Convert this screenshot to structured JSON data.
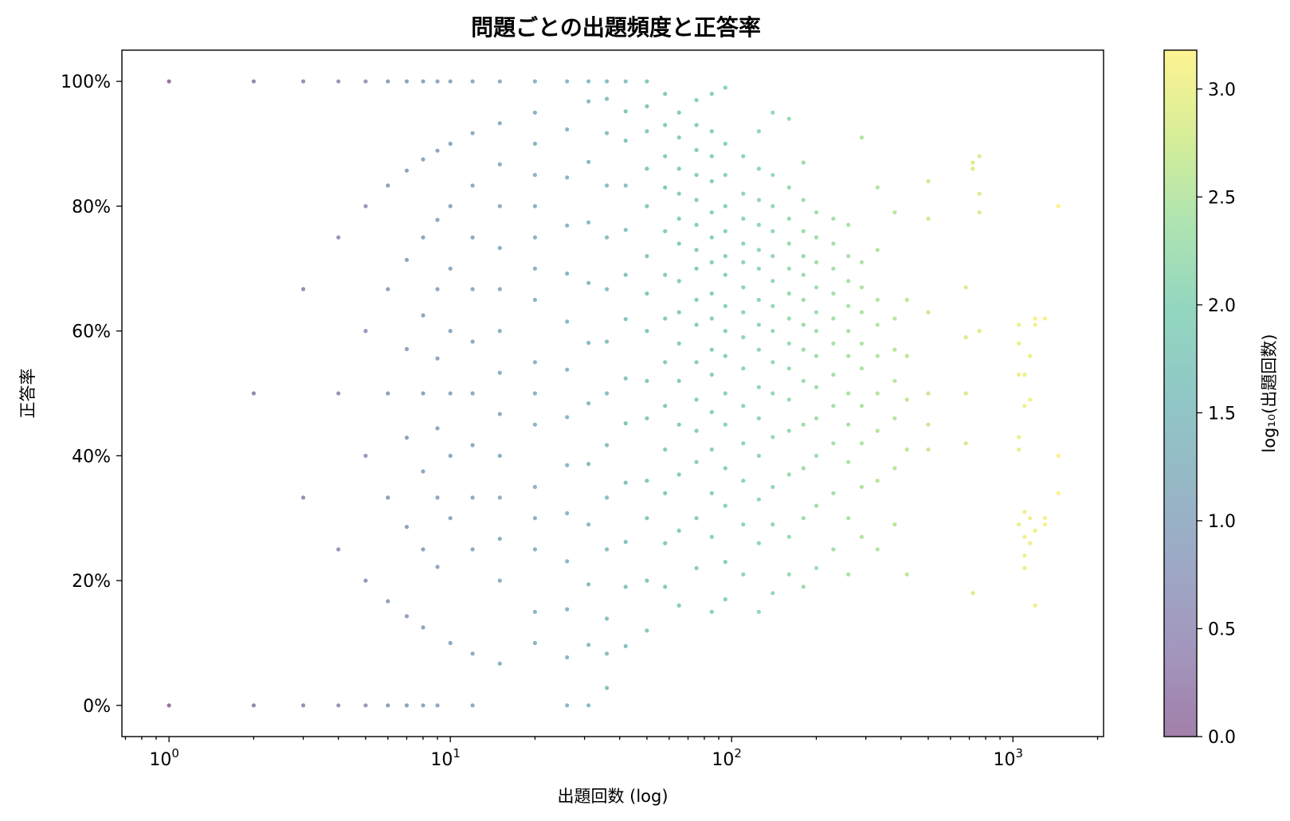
{
  "chart_data": {
    "type": "scatter",
    "title": "問題ごとの出題頻度と正答率",
    "xlabel": "出題回数 (log)",
    "ylabel": "正答率",
    "colorbar_label": "log₁₀(出題回数)",
    "x_scale": "log",
    "xlim": [
      0.68,
      2100
    ],
    "ylim": [
      -0.05,
      1.05
    ],
    "colorbar_range": [
      0.0,
      3.18
    ],
    "colormap": "viridis",
    "marker_alpha": 0.55,
    "x_major_ticks": [
      {
        "value": 1,
        "base": "10",
        "exp": "0"
      },
      {
        "value": 10,
        "base": "10",
        "exp": "1"
      },
      {
        "value": 100,
        "base": "10",
        "exp": "2"
      },
      {
        "value": 1000,
        "base": "10",
        "exp": "3"
      }
    ],
    "y_ticks": [
      {
        "value": 0.0,
        "label": "0%"
      },
      {
        "value": 0.2,
        "label": "20%"
      },
      {
        "value": 0.4,
        "label": "40%"
      },
      {
        "value": 0.6,
        "label": "60%"
      },
      {
        "value": 0.8,
        "label": "80%"
      },
      {
        "value": 1.0,
        "label": "100%"
      }
    ],
    "colorbar_ticks": [
      {
        "value": 0.0,
        "label": "0.0"
      },
      {
        "value": 0.5,
        "label": "0.5"
      },
      {
        "value": 1.0,
        "label": "1.0"
      },
      {
        "value": 1.5,
        "label": "1.5"
      },
      {
        "value": 2.0,
        "label": "2.0"
      },
      {
        "value": 2.5,
        "label": "2.5"
      },
      {
        "value": 3.0,
        "label": "3.0"
      }
    ],
    "points": [
      [
        1,
        0
      ],
      [
        1,
        1
      ],
      [
        2,
        0
      ],
      [
        2,
        0.5
      ],
      [
        2,
        1
      ],
      [
        3,
        0
      ],
      [
        3,
        0.333
      ],
      [
        3,
        0.667
      ],
      [
        3,
        1
      ],
      [
        4,
        0
      ],
      [
        4,
        0.25
      ],
      [
        4,
        0.5
      ],
      [
        4,
        0.75
      ],
      [
        4,
        1
      ],
      [
        5,
        0
      ],
      [
        5,
        0.2
      ],
      [
        5,
        0.4
      ],
      [
        5,
        0.6
      ],
      [
        5,
        0.8
      ],
      [
        5,
        1
      ],
      [
        6,
        0
      ],
      [
        6,
        0.167
      ],
      [
        6,
        0.333
      ],
      [
        6,
        0.5
      ],
      [
        6,
        0.667
      ],
      [
        6,
        0.833
      ],
      [
        6,
        1
      ],
      [
        7,
        0
      ],
      [
        7,
        0.143
      ],
      [
        7,
        0.286
      ],
      [
        7,
        0.429
      ],
      [
        7,
        0.571
      ],
      [
        7,
        0.714
      ],
      [
        7,
        0.857
      ],
      [
        7,
        1
      ],
      [
        8,
        0
      ],
      [
        8,
        0.125
      ],
      [
        8,
        0.25
      ],
      [
        8,
        0.375
      ],
      [
        8,
        0.5
      ],
      [
        8,
        0.625
      ],
      [
        8,
        0.75
      ],
      [
        8,
        0.875
      ],
      [
        8,
        1
      ],
      [
        9,
        0
      ],
      [
        9,
        0.222
      ],
      [
        9,
        0.333
      ],
      [
        9,
        0.444
      ],
      [
        9,
        0.556
      ],
      [
        9,
        0.667
      ],
      [
        9,
        0.778
      ],
      [
        9,
        0.889
      ],
      [
        9,
        1
      ],
      [
        10,
        0.1
      ],
      [
        10,
        0.3
      ],
      [
        10,
        0.4
      ],
      [
        10,
        0.5
      ],
      [
        10,
        0.6
      ],
      [
        10,
        0.7
      ],
      [
        10,
        0.8
      ],
      [
        10,
        0.9
      ],
      [
        10,
        1
      ],
      [
        12,
        0
      ],
      [
        12,
        0.083
      ],
      [
        12,
        0.25
      ],
      [
        12,
        0.333
      ],
      [
        12,
        0.417
      ],
      [
        12,
        0.5
      ],
      [
        12,
        0.583
      ],
      [
        12,
        0.667
      ],
      [
        12,
        0.75
      ],
      [
        12,
        0.833
      ],
      [
        12,
        0.917
      ],
      [
        12,
        1
      ],
      [
        15,
        0.067
      ],
      [
        15,
        0.2
      ],
      [
        15,
        0.267
      ],
      [
        15,
        0.333
      ],
      [
        15,
        0.4
      ],
      [
        15,
        0.467
      ],
      [
        15,
        0.533
      ],
      [
        15,
        0.6
      ],
      [
        15,
        0.667
      ],
      [
        15,
        0.733
      ],
      [
        15,
        0.8
      ],
      [
        15,
        0.867
      ],
      [
        15,
        0.933
      ],
      [
        15,
        1
      ],
      [
        20,
        0.1
      ],
      [
        20,
        0.15
      ],
      [
        20,
        0.25
      ],
      [
        20,
        0.3
      ],
      [
        20,
        0.35
      ],
      [
        20,
        0.45
      ],
      [
        20,
        0.5
      ],
      [
        20,
        0.55
      ],
      [
        20,
        0.65
      ],
      [
        20,
        0.7
      ],
      [
        20,
        0.75
      ],
      [
        20,
        0.8
      ],
      [
        20,
        0.85
      ],
      [
        20,
        0.9
      ],
      [
        20,
        0.95
      ],
      [
        20,
        1
      ],
      [
        26,
        0
      ],
      [
        26,
        0.077
      ],
      [
        26,
        0.154
      ],
      [
        26,
        0.231
      ],
      [
        26,
        0.308
      ],
      [
        26,
        0.385
      ],
      [
        26,
        0.462
      ],
      [
        26,
        0.538
      ],
      [
        26,
        0.615
      ],
      [
        26,
        0.692
      ],
      [
        26,
        0.769
      ],
      [
        26,
        0.846
      ],
      [
        26,
        0.923
      ],
      [
        26,
        1
      ],
      [
        31,
        0
      ],
      [
        31,
        0.097
      ],
      [
        31,
        0.194
      ],
      [
        31,
        0.29
      ],
      [
        31,
        0.387
      ],
      [
        31,
        0.484
      ],
      [
        31,
        0.581
      ],
      [
        31,
        0.677
      ],
      [
        31,
        0.774
      ],
      [
        31,
        0.871
      ],
      [
        31,
        0.968
      ],
      [
        31,
        1
      ],
      [
        36,
        0.028
      ],
      [
        36,
        0.083
      ],
      [
        36,
        0.139
      ],
      [
        36,
        0.25
      ],
      [
        36,
        0.333
      ],
      [
        36,
        0.417
      ],
      [
        36,
        0.5
      ],
      [
        36,
        0.583
      ],
      [
        36,
        0.667
      ],
      [
        36,
        0.75
      ],
      [
        36,
        0.833
      ],
      [
        36,
        0.917
      ],
      [
        36,
        0.972
      ],
      [
        36,
        1
      ],
      [
        42,
        0.095
      ],
      [
        42,
        0.19
      ],
      [
        42,
        0.262
      ],
      [
        42,
        0.357
      ],
      [
        42,
        0.452
      ],
      [
        42,
        0.524
      ],
      [
        42,
        0.619
      ],
      [
        42,
        0.69
      ],
      [
        42,
        0.762
      ],
      [
        42,
        0.833
      ],
      [
        42,
        0.905
      ],
      [
        42,
        0.952
      ],
      [
        42,
        1
      ],
      [
        50,
        0.12
      ],
      [
        50,
        0.2
      ],
      [
        50,
        0.3
      ],
      [
        50,
        0.36
      ],
      [
        50,
        0.46
      ],
      [
        50,
        0.52
      ],
      [
        50,
        0.6
      ],
      [
        50,
        0.66
      ],
      [
        50,
        0.72
      ],
      [
        50,
        0.8
      ],
      [
        50,
        0.86
      ],
      [
        50,
        0.92
      ],
      [
        50,
        0.96
      ],
      [
        50,
        1
      ],
      [
        58,
        0.19
      ],
      [
        58,
        0.26
      ],
      [
        58,
        0.34
      ],
      [
        58,
        0.41
      ],
      [
        58,
        0.48
      ],
      [
        58,
        0.55
      ],
      [
        58,
        0.62
      ],
      [
        58,
        0.69
      ],
      [
        58,
        0.76
      ],
      [
        58,
        0.83
      ],
      [
        58,
        0.88
      ],
      [
        58,
        0.93
      ],
      [
        58,
        0.98
      ],
      [
        65,
        0.16
      ],
      [
        65,
        0.28
      ],
      [
        65,
        0.37
      ],
      [
        65,
        0.45
      ],
      [
        65,
        0.52
      ],
      [
        65,
        0.58
      ],
      [
        65,
        0.63
      ],
      [
        65,
        0.68
      ],
      [
        65,
        0.74
      ],
      [
        65,
        0.78
      ],
      [
        65,
        0.82
      ],
      [
        65,
        0.86
      ],
      [
        65,
        0.91
      ],
      [
        65,
        0.95
      ],
      [
        75,
        0.22
      ],
      [
        75,
        0.3
      ],
      [
        75,
        0.39
      ],
      [
        75,
        0.44
      ],
      [
        75,
        0.49
      ],
      [
        75,
        0.55
      ],
      [
        75,
        0.61
      ],
      [
        75,
        0.65
      ],
      [
        75,
        0.7
      ],
      [
        75,
        0.73
      ],
      [
        75,
        0.77
      ],
      [
        75,
        0.81
      ],
      [
        75,
        0.85
      ],
      [
        75,
        0.89
      ],
      [
        75,
        0.93
      ],
      [
        75,
        0.97
      ],
      [
        85,
        0.15
      ],
      [
        85,
        0.27
      ],
      [
        85,
        0.34
      ],
      [
        85,
        0.41
      ],
      [
        85,
        0.47
      ],
      [
        85,
        0.53
      ],
      [
        85,
        0.57
      ],
      [
        85,
        0.62
      ],
      [
        85,
        0.66
      ],
      [
        85,
        0.71
      ],
      [
        85,
        0.75
      ],
      [
        85,
        0.79
      ],
      [
        85,
        0.84
      ],
      [
        85,
        0.88
      ],
      [
        85,
        0.92
      ],
      [
        85,
        0.98
      ],
      [
        95,
        0.17
      ],
      [
        95,
        0.23
      ],
      [
        95,
        0.32
      ],
      [
        95,
        0.38
      ],
      [
        95,
        0.45
      ],
      [
        95,
        0.5
      ],
      [
        95,
        0.56
      ],
      [
        95,
        0.6
      ],
      [
        95,
        0.64
      ],
      [
        95,
        0.69
      ],
      [
        95,
        0.72
      ],
      [
        95,
        0.76
      ],
      [
        95,
        0.8
      ],
      [
        95,
        0.85
      ],
      [
        95,
        0.9
      ],
      [
        95,
        0.99
      ],
      [
        110,
        0.21
      ],
      [
        110,
        0.29
      ],
      [
        110,
        0.36
      ],
      [
        110,
        0.42
      ],
      [
        110,
        0.48
      ],
      [
        110,
        0.54
      ],
      [
        110,
        0.59
      ],
      [
        110,
        0.63
      ],
      [
        110,
        0.67
      ],
      [
        110,
        0.71
      ],
      [
        110,
        0.74
      ],
      [
        110,
        0.78
      ],
      [
        110,
        0.82
      ],
      [
        110,
        0.88
      ],
      [
        125,
        0.15
      ],
      [
        125,
        0.26
      ],
      [
        125,
        0.33
      ],
      [
        125,
        0.4
      ],
      [
        125,
        0.46
      ],
      [
        125,
        0.51
      ],
      [
        125,
        0.57
      ],
      [
        125,
        0.61
      ],
      [
        125,
        0.65
      ],
      [
        125,
        0.7
      ],
      [
        125,
        0.73
      ],
      [
        125,
        0.77
      ],
      [
        125,
        0.81
      ],
      [
        125,
        0.86
      ],
      [
        125,
        0.92
      ],
      [
        140,
        0.18
      ],
      [
        140,
        0.29
      ],
      [
        140,
        0.35
      ],
      [
        140,
        0.43
      ],
      [
        140,
        0.5
      ],
      [
        140,
        0.55
      ],
      [
        140,
        0.6
      ],
      [
        140,
        0.64
      ],
      [
        140,
        0.68
      ],
      [
        140,
        0.72
      ],
      [
        140,
        0.76
      ],
      [
        140,
        0.8
      ],
      [
        140,
        0.85
      ],
      [
        140,
        0.95
      ],
      [
        160,
        0.21
      ],
      [
        160,
        0.27
      ],
      [
        160,
        0.37
      ],
      [
        160,
        0.44
      ],
      [
        160,
        0.49
      ],
      [
        160,
        0.54
      ],
      [
        160,
        0.58
      ],
      [
        160,
        0.62
      ],
      [
        160,
        0.66
      ],
      [
        160,
        0.7
      ],
      [
        160,
        0.74
      ],
      [
        160,
        0.78
      ],
      [
        160,
        0.83
      ],
      [
        160,
        0.94
      ],
      [
        180,
        0.19
      ],
      [
        180,
        0.3
      ],
      [
        180,
        0.38
      ],
      [
        180,
        0.45
      ],
      [
        180,
        0.52
      ],
      [
        180,
        0.57
      ],
      [
        180,
        0.61
      ],
      [
        180,
        0.65
      ],
      [
        180,
        0.69
      ],
      [
        180,
        0.72
      ],
      [
        180,
        0.76
      ],
      [
        180,
        0.81
      ],
      [
        180,
        0.87
      ],
      [
        200,
        0.22
      ],
      [
        200,
        0.32
      ],
      [
        200,
        0.4
      ],
      [
        200,
        0.46
      ],
      [
        200,
        0.51
      ],
      [
        200,
        0.56
      ],
      [
        200,
        0.6
      ],
      [
        200,
        0.63
      ],
      [
        200,
        0.67
      ],
      [
        200,
        0.71
      ],
      [
        200,
        0.75
      ],
      [
        200,
        0.79
      ],
      [
        230,
        0.25
      ],
      [
        230,
        0.34
      ],
      [
        230,
        0.42
      ],
      [
        230,
        0.48
      ],
      [
        230,
        0.53
      ],
      [
        230,
        0.58
      ],
      [
        230,
        0.62
      ],
      [
        230,
        0.66
      ],
      [
        230,
        0.7
      ],
      [
        230,
        0.74
      ],
      [
        230,
        0.78
      ],
      [
        260,
        0.21
      ],
      [
        260,
        0.3
      ],
      [
        260,
        0.39
      ],
      [
        260,
        0.45
      ],
      [
        260,
        0.5
      ],
      [
        260,
        0.56
      ],
      [
        260,
        0.6
      ],
      [
        260,
        0.64
      ],
      [
        260,
        0.68
      ],
      [
        260,
        0.72
      ],
      [
        260,
        0.77
      ],
      [
        290,
        0.27
      ],
      [
        290,
        0.35
      ],
      [
        290,
        0.42
      ],
      [
        290,
        0.48
      ],
      [
        290,
        0.54
      ],
      [
        290,
        0.58
      ],
      [
        290,
        0.63
      ],
      [
        290,
        0.67
      ],
      [
        290,
        0.71
      ],
      [
        290,
        0.91
      ],
      [
        330,
        0.25
      ],
      [
        330,
        0.36
      ],
      [
        330,
        0.44
      ],
      [
        330,
        0.5
      ],
      [
        330,
        0.56
      ],
      [
        330,
        0.61
      ],
      [
        330,
        0.65
      ],
      [
        330,
        0.73
      ],
      [
        330,
        0.83
      ],
      [
        380,
        0.29
      ],
      [
        380,
        0.38
      ],
      [
        380,
        0.46
      ],
      [
        380,
        0.52
      ],
      [
        380,
        0.57
      ],
      [
        380,
        0.62
      ],
      [
        380,
        0.79
      ],
      [
        420,
        0.21
      ],
      [
        420,
        0.41
      ],
      [
        420,
        0.49
      ],
      [
        420,
        0.56
      ],
      [
        420,
        0.65
      ],
      [
        500,
        0.41
      ],
      [
        500,
        0.45
      ],
      [
        500,
        0.5
      ],
      [
        500,
        0.63
      ],
      [
        500,
        0.78
      ],
      [
        500,
        0.84
      ],
      [
        680,
        0.42
      ],
      [
        680,
        0.5
      ],
      [
        680,
        0.59
      ],
      [
        680,
        0.67
      ],
      [
        720,
        0.18
      ],
      [
        720,
        0.86
      ],
      [
        720,
        0.87
      ],
      [
        760,
        0.6
      ],
      [
        760,
        0.79
      ],
      [
        760,
        0.82
      ],
      [
        760,
        0.88
      ],
      [
        1050,
        0.41
      ],
      [
        1050,
        0.43
      ],
      [
        1050,
        0.53
      ],
      [
        1050,
        0.58
      ],
      [
        1050,
        0.61
      ],
      [
        1050,
        0.29
      ],
      [
        1100,
        0.22
      ],
      [
        1100,
        0.24
      ],
      [
        1100,
        0.27
      ],
      [
        1100,
        0.31
      ],
      [
        1100,
        0.48
      ],
      [
        1100,
        0.53
      ],
      [
        1150,
        0.26
      ],
      [
        1150,
        0.3
      ],
      [
        1150,
        0.49
      ],
      [
        1150,
        0.56
      ],
      [
        1200,
        0.16
      ],
      [
        1200,
        0.28
      ],
      [
        1200,
        0.61
      ],
      [
        1200,
        0.62
      ],
      [
        1300,
        0.3
      ],
      [
        1300,
        0.62
      ],
      [
        1300,
        0.29
      ],
      [
        1450,
        0.34
      ],
      [
        1450,
        0.4
      ],
      [
        1450,
        0.8
      ]
    ]
  }
}
